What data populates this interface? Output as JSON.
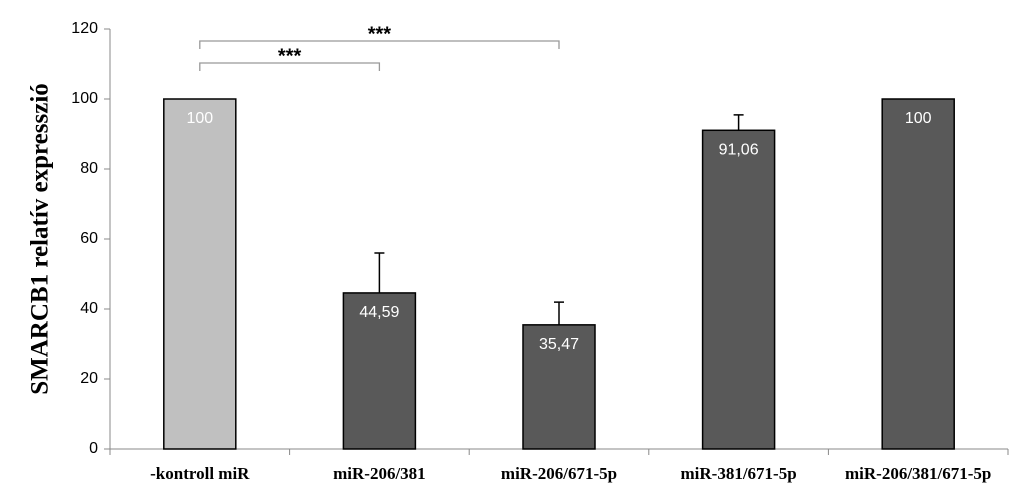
{
  "chart_data": {
    "type": "bar",
    "y_axis_label": "SMARCB1 relatív expresszió",
    "categories": [
      "-kontroll miR",
      "miR-206/381",
      "miR-206/671-5p",
      "miR-381/671-5p",
      "miR-206/381/671-5p"
    ],
    "values": [
      100,
      44.59,
      35.47,
      91.06,
      100
    ],
    "value_labels": [
      "100",
      "44,59",
      "35,47",
      "91,06",
      "100"
    ],
    "errors": [
      null,
      11.4,
      6.5,
      4.4,
      null
    ],
    "colors": [
      "#c0c0c0",
      "#595959",
      "#595959",
      "#595959",
      "#595959"
    ],
    "ylim": [
      0,
      120
    ],
    "yticks": [
      0,
      20,
      40,
      60,
      80,
      100,
      120
    ],
    "grid": false,
    "brackets": [
      {
        "from": 0,
        "to": 1,
        "label": "***"
      },
      {
        "from": 0,
        "to": 2,
        "label": "***"
      }
    ]
  }
}
